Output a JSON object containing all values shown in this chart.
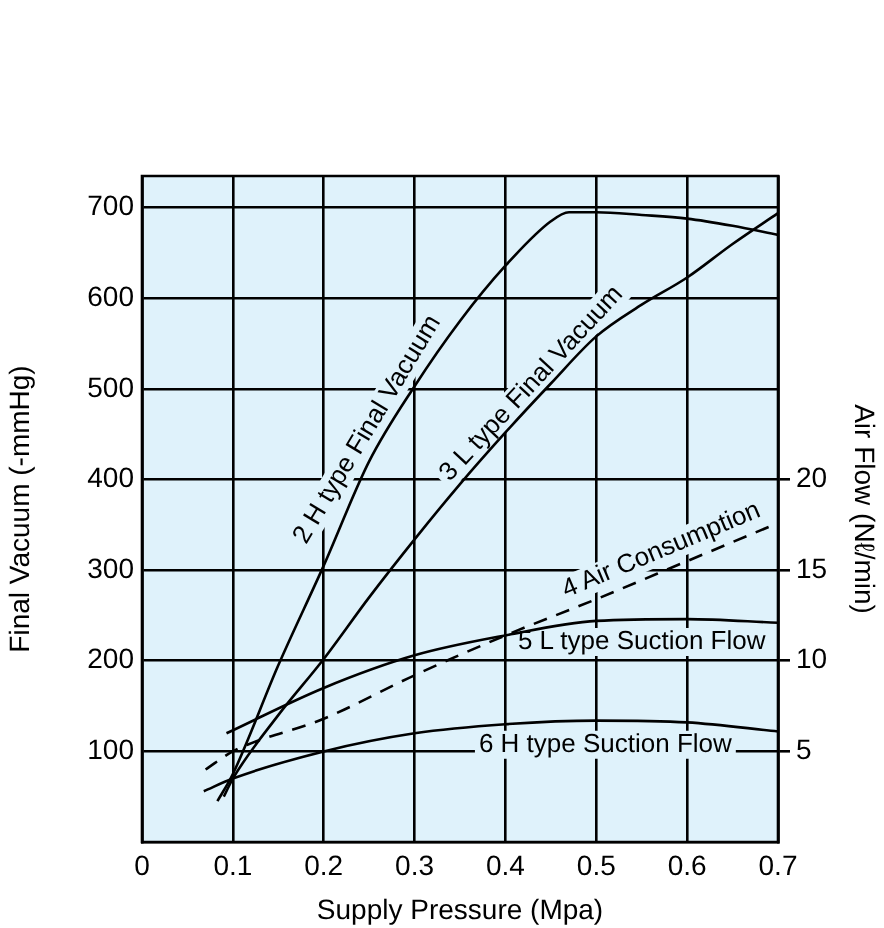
{
  "chart_data": {
    "type": "line",
    "xlabel": "Supply Pressure (Mpa)",
    "ylabel": "Final Vacuum (-mmHg)",
    "y2label": "Air Flow (Nℓ/min)",
    "xlim": [
      0,
      0.7
    ],
    "xticks": [
      0,
      0.1,
      0.2,
      0.3,
      0.4,
      0.5,
      0.6,
      0.7
    ],
    "ylim": [
      0,
      735
    ],
    "yticks": [
      100,
      200,
      300,
      400,
      500,
      600,
      700
    ],
    "y2lim": [
      0,
      36.75
    ],
    "y2ticks": [
      5,
      10,
      15,
      20
    ],
    "grid": true,
    "marker": "none",
    "series": [
      {
        "name": "2 H type Final Vacuum",
        "color": "#000000",
        "x": [
          0.083,
          0.1,
          0.15,
          0.2,
          0.25,
          0.3,
          0.35,
          0.4,
          0.45,
          0.47,
          0.5,
          0.55,
          0.6,
          0.65,
          0.7
        ],
        "values": [
          45,
          75,
          195,
          305,
          420,
          503,
          575,
          636,
          685,
          695,
          695,
          692,
          688,
          680,
          670
        ]
      },
      {
        "name": "3 L type Final Vacuum",
        "color": "#000000",
        "x": [
          0.09,
          0.1,
          0.15,
          0.2,
          0.25,
          0.3,
          0.35,
          0.4,
          0.45,
          0.5,
          0.55,
          0.6,
          0.65,
          0.7
        ],
        "values": [
          50,
          70,
          140,
          202,
          270,
          334,
          395,
          452,
          506,
          558,
          593,
          623,
          660,
          694
        ]
      },
      {
        "name": "4 Air Consumption",
        "color": "#000000",
        "axis": "y2",
        "line_style": "dashed",
        "x": [
          0.07,
          0.1,
          0.2,
          0.3,
          0.4,
          0.5,
          0.6,
          0.7
        ],
        "values": [
          4,
          5,
          6.8,
          9.2,
          11.4,
          13.4,
          15.5,
          17.6
        ]
      },
      {
        "name": "5 L type Suction Flow",
        "color": "#000000",
        "axis": "y2",
        "x": [
          0.093,
          0.2,
          0.3,
          0.4,
          0.5,
          0.6,
          0.7
        ],
        "values": [
          6,
          8.5,
          10.3,
          11.4,
          12.2,
          12.3,
          12.1
        ]
      },
      {
        "name": "6 H type Suction Flow",
        "color": "#000000",
        "axis": "y2",
        "x": [
          0.068,
          0.1,
          0.2,
          0.3,
          0.4,
          0.5,
          0.6,
          0.7
        ],
        "values": [
          2.8,
          3.5,
          5,
          6,
          6.5,
          6.7,
          6.6,
          6.1
        ]
      }
    ]
  }
}
